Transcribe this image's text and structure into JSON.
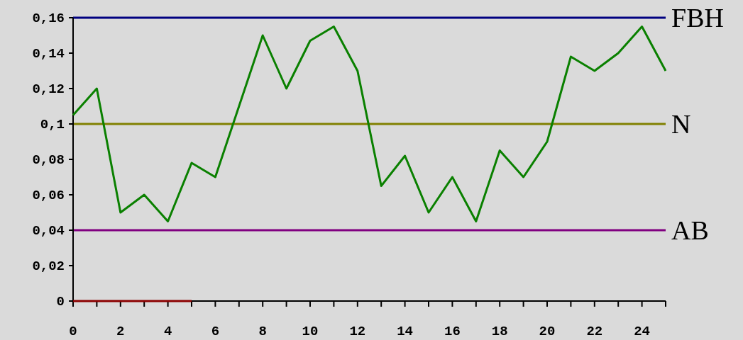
{
  "chart_data": {
    "type": "line",
    "x": [
      0,
      1,
      2,
      3,
      4,
      5,
      6,
      7,
      8,
      9,
      10,
      11,
      12,
      13,
      14,
      15,
      16,
      17,
      18,
      19,
      20,
      21,
      22,
      23,
      24,
      25
    ],
    "series": [
      {
        "color": "#0a8000",
        "values": [
          0.105,
          0.12,
          0.05,
          0.06,
          0.045,
          0.078,
          0.07,
          0.11,
          0.15,
          0.12,
          0.147,
          0.155,
          0.13,
          0.065,
          0.082,
          0.05,
          0.07,
          0.045,
          0.085,
          0.07,
          0.09,
          0.138,
          0.13,
          0.14,
          0.155,
          0.13
        ]
      },
      {
        "color": "#8b0000",
        "x": [
          0,
          5
        ],
        "values": [
          0,
          0
        ]
      }
    ],
    "xlim": [
      0,
      25
    ],
    "xticks": [
      0,
      {
        "value": 1,
        "label": null
      },
      2,
      {
        "value": 3,
        "label": null
      },
      4,
      {
        "value": 5,
        "label": null
      },
      6,
      {
        "value": 7,
        "label": null
      },
      8,
      {
        "value": 9,
        "label": null
      },
      10,
      {
        "value": 11,
        "label": null
      },
      12,
      {
        "value": 13,
        "label": null
      },
      14,
      {
        "value": 15,
        "label": null
      },
      16,
      {
        "value": 17,
        "label": null
      },
      18,
      {
        "value": 19,
        "label": null
      },
      20,
      {
        "value": 21,
        "label": null
      },
      22,
      {
        "value": 23,
        "label": null
      },
      24,
      {
        "value": 25,
        "label": null
      }
    ],
    "ylim": [
      0,
      0.16
    ],
    "yticks": [
      0,
      {
        "value": 0.02,
        "label": "0,02"
      },
      {
        "value": 0.04,
        "label": "0,04"
      },
      {
        "value": 0.06,
        "label": "0,06"
      },
      {
        "value": 0.08,
        "label": "0,08"
      },
      {
        "value": 0.1,
        "label": "0,1"
      },
      {
        "value": 0.12,
        "label": "0,12"
      },
      {
        "value": 0.14,
        "label": "0,14"
      },
      {
        "value": 0.16,
        "label": "0,16"
      }
    ],
    "ref_lines": [
      {
        "axis": "y",
        "value": 0.16,
        "label": "FBH",
        "color": "#000080"
      },
      {
        "axis": "y",
        "value": 0.1,
        "label": "N",
        "color": "#808000"
      },
      {
        "axis": "y",
        "value": 0.04,
        "label": "AB",
        "color": "#800080"
      }
    ],
    "grid": false,
    "marker": "none",
    "line_style": "solid"
  }
}
